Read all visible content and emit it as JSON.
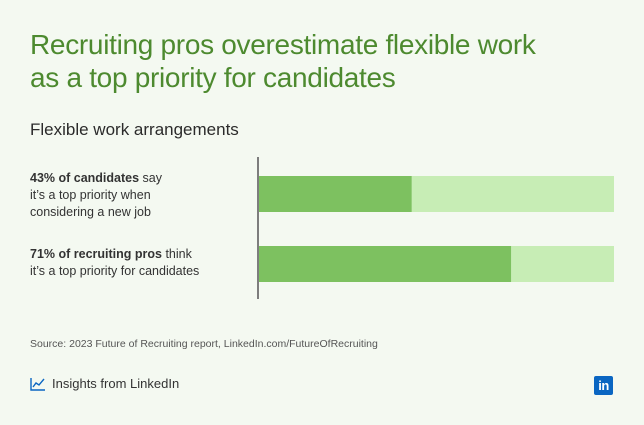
{
  "title_lines": [
    "Recruiting pros overestimate flexible work",
    "as a top priority for candidates"
  ],
  "subtitle": "Flexible work arrangements",
  "rows": [
    {
      "bold": "43% of candidates",
      "rest_first": " say",
      "lines": [
        "it’s a top priority when",
        "considering a new job"
      ]
    },
    {
      "bold": "71% of recruiting pros",
      "rest_first": " think",
      "lines": [
        "it’s a top priority for candidates"
      ]
    }
  ],
  "source": "Source: 2023 Future of Recruiting report, LinkedIn.com/FutureOfRecruiting",
  "footer_text": "Insights from LinkedIn",
  "footer_icon": "chart-line-icon",
  "logo_text": "in",
  "colors": {
    "bar_fill": "#7dc160",
    "bar_track": "#c7edb5",
    "title": "#4d8a2f",
    "logo": "#0a66c2"
  },
  "chart_data": {
    "type": "bar",
    "orientation": "horizontal",
    "categories": [
      "43% of candidates",
      "71% of recruiting pros"
    ],
    "values": [
      43,
      71
    ],
    "xlim": [
      0,
      100
    ],
    "title": "Flexible work arrangements"
  }
}
